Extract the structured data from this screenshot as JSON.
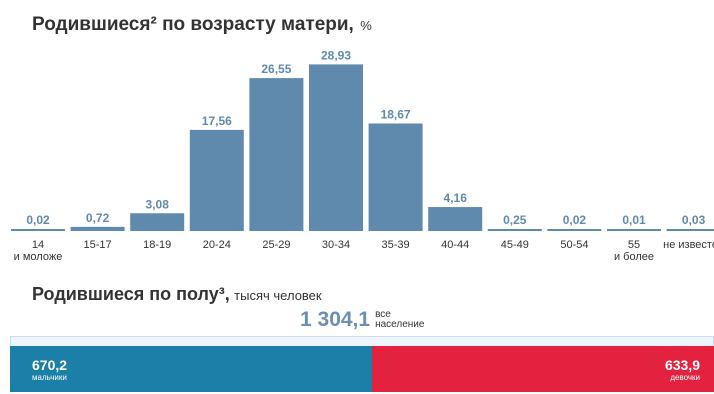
{
  "title": {
    "main": "Родившиеся² по возрасту матери,",
    "unit": "%"
  },
  "colors": {
    "bar": "#5f89ad",
    "value_label": "#5f89ad",
    "tick_label": "#333333",
    "boys": "#1b7fa8",
    "girls": "#e3223f"
  },
  "chart_data": [
    {
      "type": "bar",
      "title": "Родившиеся² по возрасту матери, %",
      "categories": [
        [
          "14",
          "и моложе"
        ],
        [
          "15-17"
        ],
        [
          "18-19"
        ],
        [
          "20-24"
        ],
        [
          "25-29"
        ],
        [
          "30-34"
        ],
        [
          "35-39"
        ],
        [
          "40-44"
        ],
        [
          "45-49"
        ],
        [
          "50-54"
        ],
        [
          "55",
          "и более"
        ],
        [
          "не известен"
        ]
      ],
      "values": [
        0.02,
        0.72,
        3.08,
        17.56,
        26.55,
        28.93,
        18.67,
        4.16,
        0.25,
        0.02,
        0.01,
        0.03
      ],
      "value_labels": [
        "0,02",
        "0,72",
        "3,08",
        "17,56",
        "26,55",
        "28,93",
        "18,67",
        "4,16",
        "0,25",
        "0,02",
        "0,01",
        "0,03"
      ],
      "ylim": [
        0,
        29
      ]
    },
    {
      "type": "bar",
      "title": "Родившиеся по полу³, тысяч человек",
      "categories": [
        "мальчики",
        "девочки"
      ],
      "values": [
        670.2,
        633.9
      ],
      "value_labels": [
        "670,2",
        "633,9"
      ],
      "total": {
        "value": 1304.1,
        "label": "1 304,1",
        "caption": [
          "все",
          "население"
        ]
      }
    }
  ],
  "sex": {
    "title": {
      "main": "Родившиеся по полу³,",
      "unit": "тысяч человек"
    },
    "total_label": "1 304,1",
    "total_caption_1": "все",
    "total_caption_2": "население",
    "boys": {
      "value": "670,2",
      "caption": "мальчики"
    },
    "girls": {
      "value": "633,9",
      "caption": "девочки"
    }
  }
}
